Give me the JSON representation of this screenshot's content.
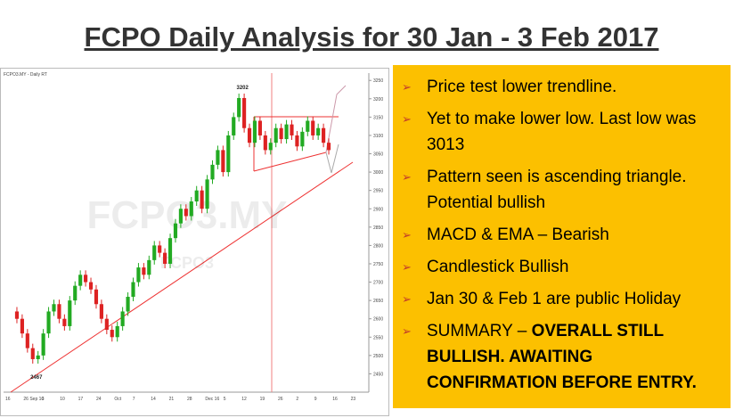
{
  "header": {
    "title": "FCPO Daily Analysis for 30 Jan - 3 Feb 2017"
  },
  "chart": {
    "title": "FCPO3.MY - Daily RT",
    "watermark": "FCPO3.MY",
    "watermark_sub": "FCPO3",
    "annotations": [
      {
        "label": "3202",
        "index": 42
      },
      {
        "label": "2467",
        "index": 3
      }
    ],
    "ylim": [
      2400,
      3270
    ],
    "yticks": [
      2450,
      2500,
      2550,
      2600,
      2650,
      2700,
      2750,
      2800,
      2850,
      2900,
      2950,
      3000,
      3050,
      3100,
      3150,
      3200,
      3250
    ],
    "x_labels": [
      "16",
      "26 Sep 16",
      "3",
      "10",
      "17",
      "24",
      "Oct",
      "7",
      "14",
      "21",
      "28",
      "Dec 16",
      "5",
      "12",
      "19",
      "26",
      "2",
      "9",
      "16",
      "23"
    ],
    "open": [
      2620,
      2600,
      2560,
      2520,
      2490,
      2500,
      2560,
      2620,
      2640,
      2600,
      2580,
      2650,
      2690,
      2720,
      2700,
      2680,
      2640,
      2600,
      2570,
      2550,
      2580,
      2620,
      2660,
      2700,
      2740,
      2720,
      2760,
      2800,
      2780,
      2750,
      2820,
      2860,
      2900,
      2880,
      2920,
      2950,
      2900,
      2980,
      3020,
      3060,
      3000,
      3100,
      3150,
      3202,
      3120,
      3080,
      3140,
      3100,
      3060,
      3080,
      3120,
      3090,
      3130,
      3100,
      3070,
      3110,
      3140,
      3100,
      3120,
      3080
    ],
    "close": [
      2600,
      2560,
      2520,
      2490,
      2500,
      2560,
      2620,
      2640,
      2600,
      2580,
      2650,
      2690,
      2720,
      2700,
      2680,
      2640,
      2600,
      2570,
      2550,
      2580,
      2620,
      2660,
      2700,
      2740,
      2720,
      2760,
      2800,
      2780,
      2750,
      2820,
      2860,
      2900,
      2880,
      2920,
      2950,
      2900,
      2980,
      3020,
      3060,
      3000,
      3100,
      3150,
      3202,
      3120,
      3080,
      3140,
      3100,
      3060,
      3080,
      3120,
      3090,
      3130,
      3100,
      3070,
      3110,
      3140,
      3100,
      3120,
      3080,
      3060
    ],
    "up_color": "#22aa22",
    "down_color": "#dd2222"
  },
  "bullets": [
    {
      "text": "Price test lower trendline."
    },
    {
      "text": "Yet to make lower low. Last low was 3013"
    },
    {
      "text": "Pattern seen is ascending triangle. Potential bullish"
    },
    {
      "text": "MACD & EMA – Bearish"
    },
    {
      "text": "Candlestick Bullish"
    },
    {
      "text": "Jan 30 & Feb 1 are public Holiday"
    },
    {
      "text": "SUMMARY – ",
      "emphasis": "OVERALL STILL BULLISH. AWAITING CONFIRMATION BEFORE ENTRY."
    }
  ]
}
